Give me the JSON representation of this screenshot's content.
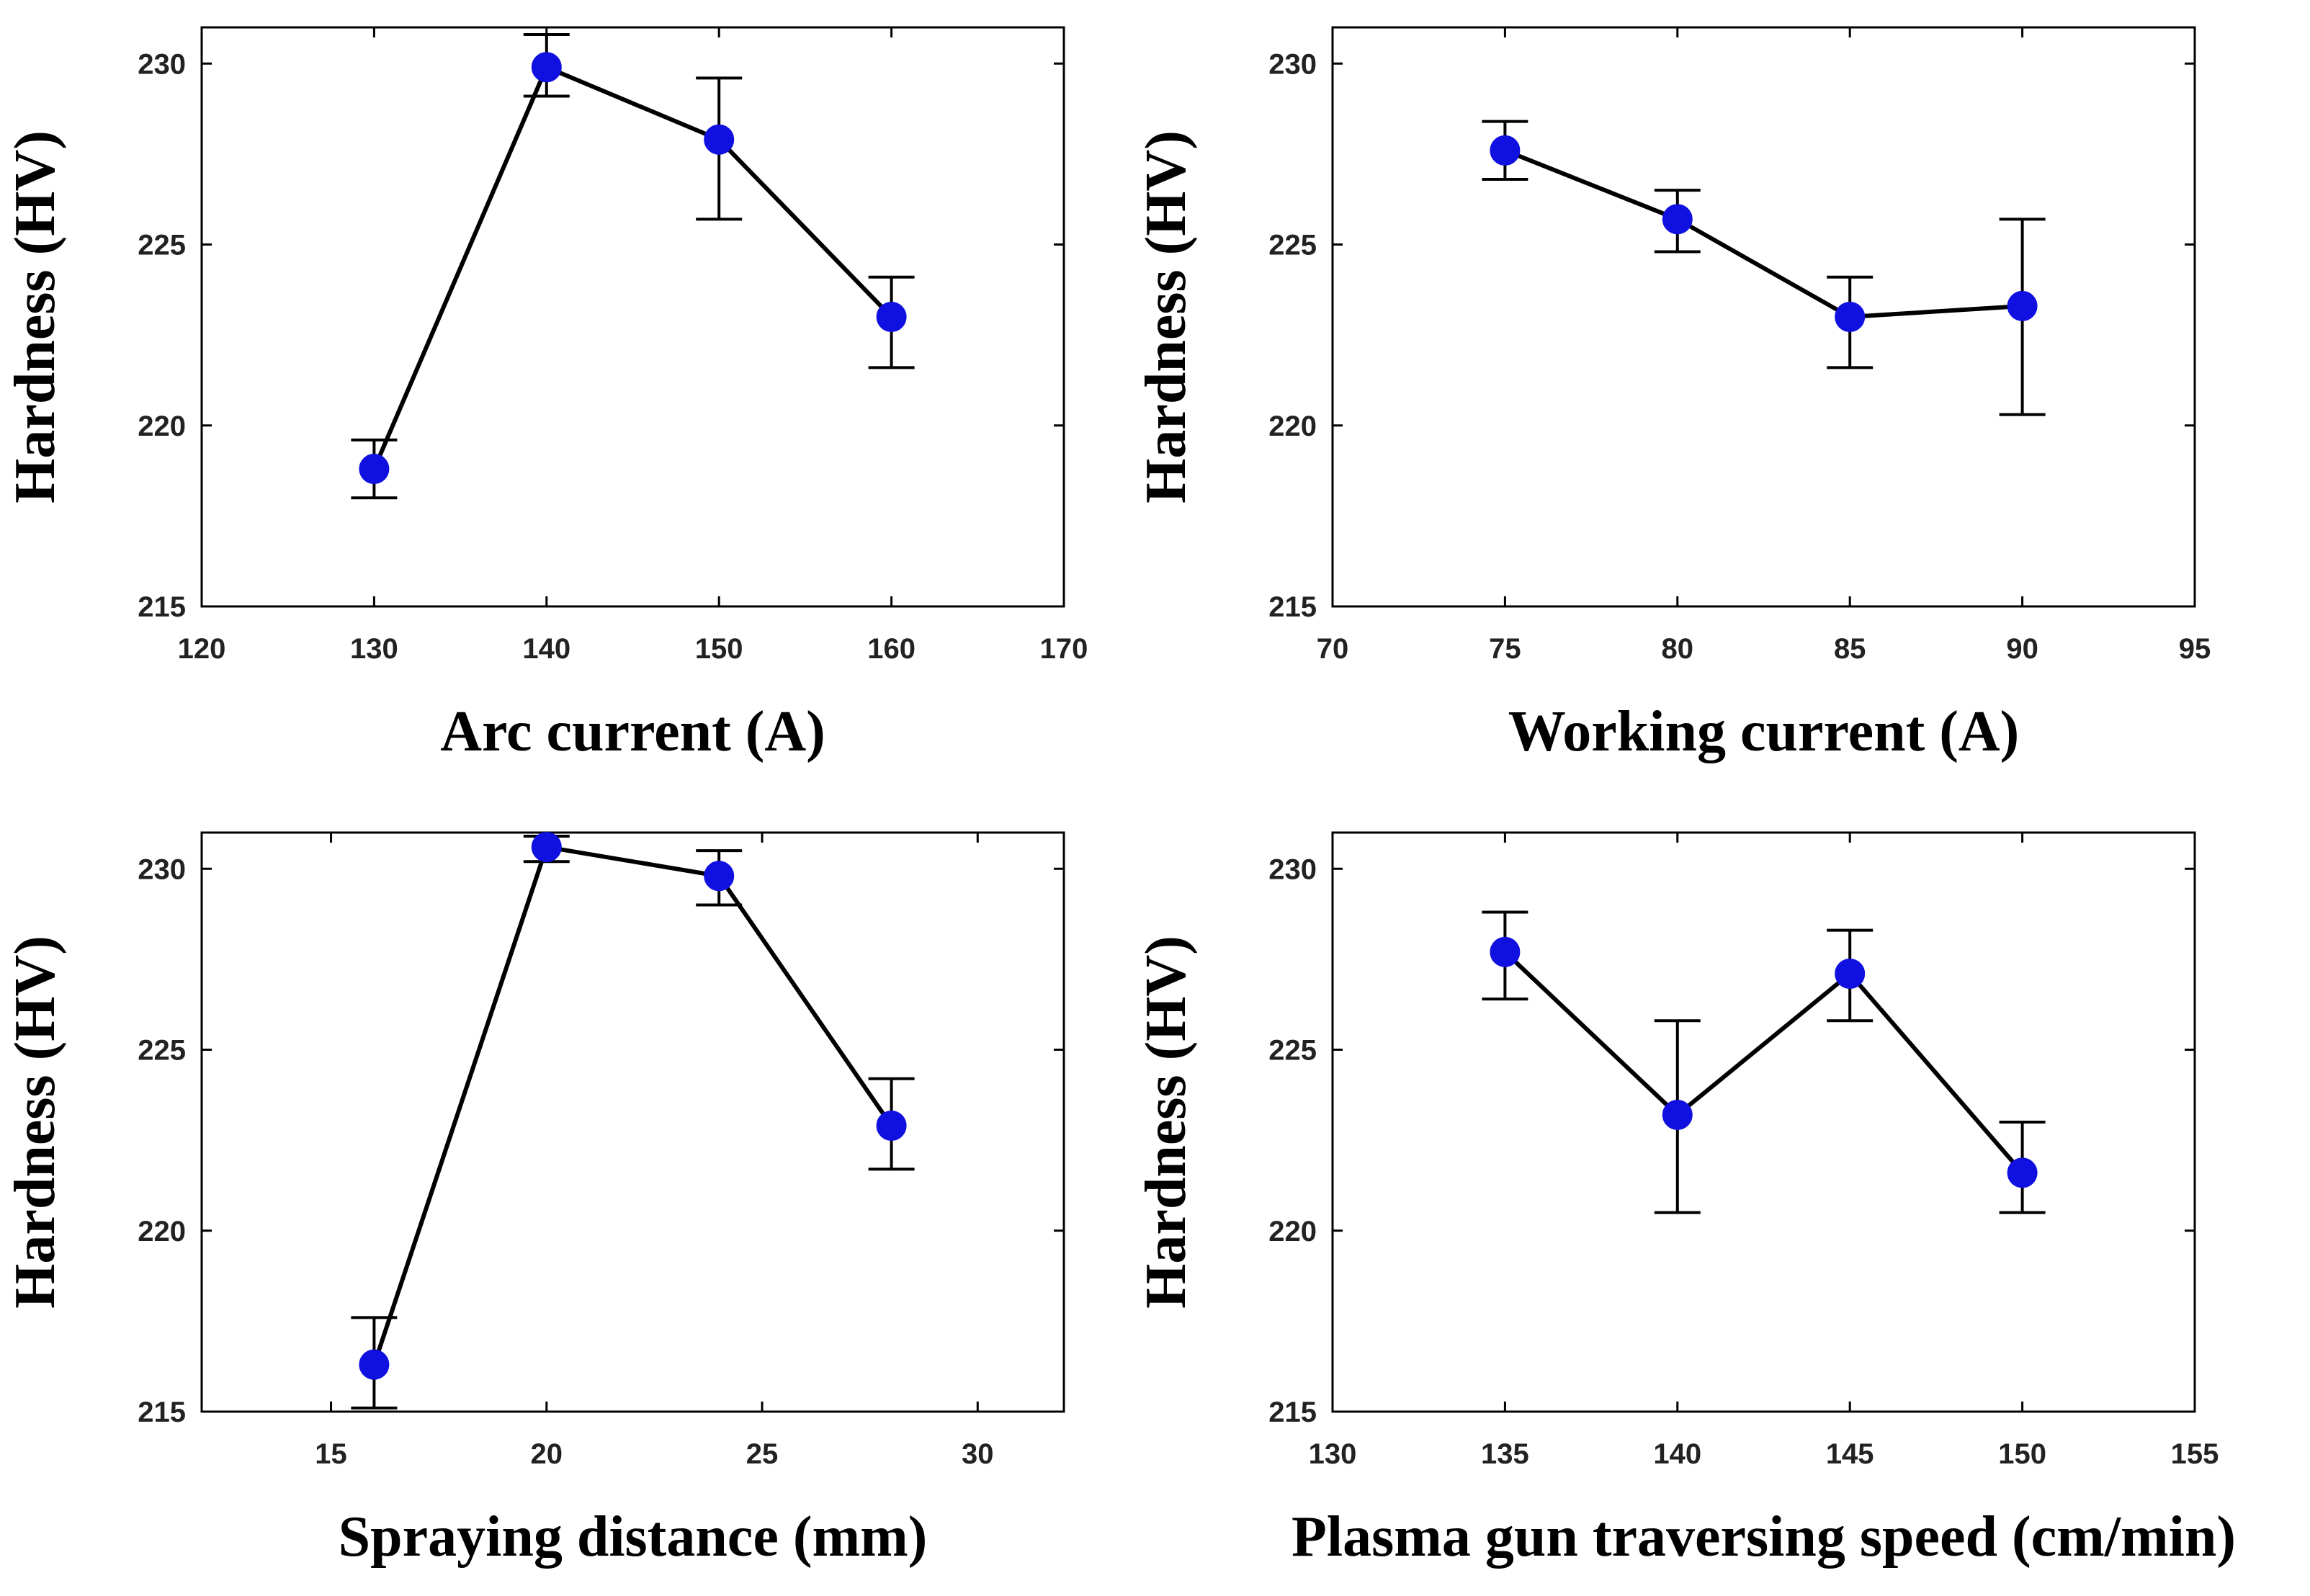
{
  "chart_data": [
    {
      "type": "line",
      "title": "",
      "xlabel": "Arc current (A)",
      "ylabel": "Hardness (HV)",
      "xlim": [
        120,
        170
      ],
      "ylim": [
        215,
        231
      ],
      "xticks": [
        120,
        130,
        140,
        150,
        160,
        170
      ],
      "yticks": [
        215,
        220,
        225,
        230
      ],
      "x": [
        130,
        140,
        150,
        160
      ],
      "values": [
        218.8,
        229.9,
        227.9,
        223.0
      ],
      "err_low": [
        218.0,
        229.1,
        225.7,
        221.6
      ],
      "err_high": [
        219.6,
        230.8,
        229.6,
        224.1
      ],
      "grid": false,
      "marker_color": "#1010e0",
      "line_color": "#000000"
    },
    {
      "type": "line",
      "title": "",
      "xlabel": "Working current (A)",
      "ylabel": "Hardness (HV)",
      "xlim": [
        70,
        95
      ],
      "ylim": [
        215,
        231
      ],
      "xticks": [
        70,
        75,
        80,
        85,
        90,
        95
      ],
      "yticks": [
        215,
        220,
        225,
        230
      ],
      "x": [
        75,
        80,
        85,
        90
      ],
      "values": [
        227.6,
        225.7,
        223.0,
        223.3
      ],
      "err_low": [
        226.8,
        224.8,
        221.6,
        220.3
      ],
      "err_high": [
        228.4,
        226.5,
        224.1,
        225.7
      ],
      "grid": false,
      "marker_color": "#1010e0",
      "line_color": "#000000"
    },
    {
      "type": "line",
      "title": "",
      "xlabel": "Spraying distance (mm)",
      "ylabel": "Hardness (HV)",
      "xlim": [
        12,
        32
      ],
      "ylim": [
        215,
        231
      ],
      "xticks": [
        15,
        20,
        25,
        30
      ],
      "yticks": [
        215,
        220,
        225,
        230
      ],
      "x": [
        16,
        20,
        24,
        28
      ],
      "values": [
        216.3,
        230.6,
        229.8,
        222.9
      ],
      "err_low": [
        215.1,
        230.2,
        229.0,
        221.7
      ],
      "err_high": [
        217.6,
        230.9,
        230.5,
        224.2
      ],
      "grid": false,
      "marker_color": "#1010e0",
      "line_color": "#000000"
    },
    {
      "type": "line",
      "title": "",
      "xlabel": "Plasma gun traversing speed (cm/min)",
      "ylabel": "Hardness (HV)",
      "xlim": [
        130,
        155
      ],
      "ylim": [
        215,
        231
      ],
      "xticks": [
        130,
        135,
        140,
        145,
        150,
        155
      ],
      "yticks": [
        215,
        220,
        225,
        230
      ],
      "x": [
        135,
        140,
        145,
        150
      ],
      "values": [
        227.7,
        223.2,
        227.1,
        221.6
      ],
      "err_low": [
        226.4,
        220.5,
        225.8,
        220.5
      ],
      "err_high": [
        228.8,
        225.8,
        228.3,
        223.0
      ],
      "grid": false,
      "marker_color": "#1010e0",
      "line_color": "#000000"
    }
  ]
}
